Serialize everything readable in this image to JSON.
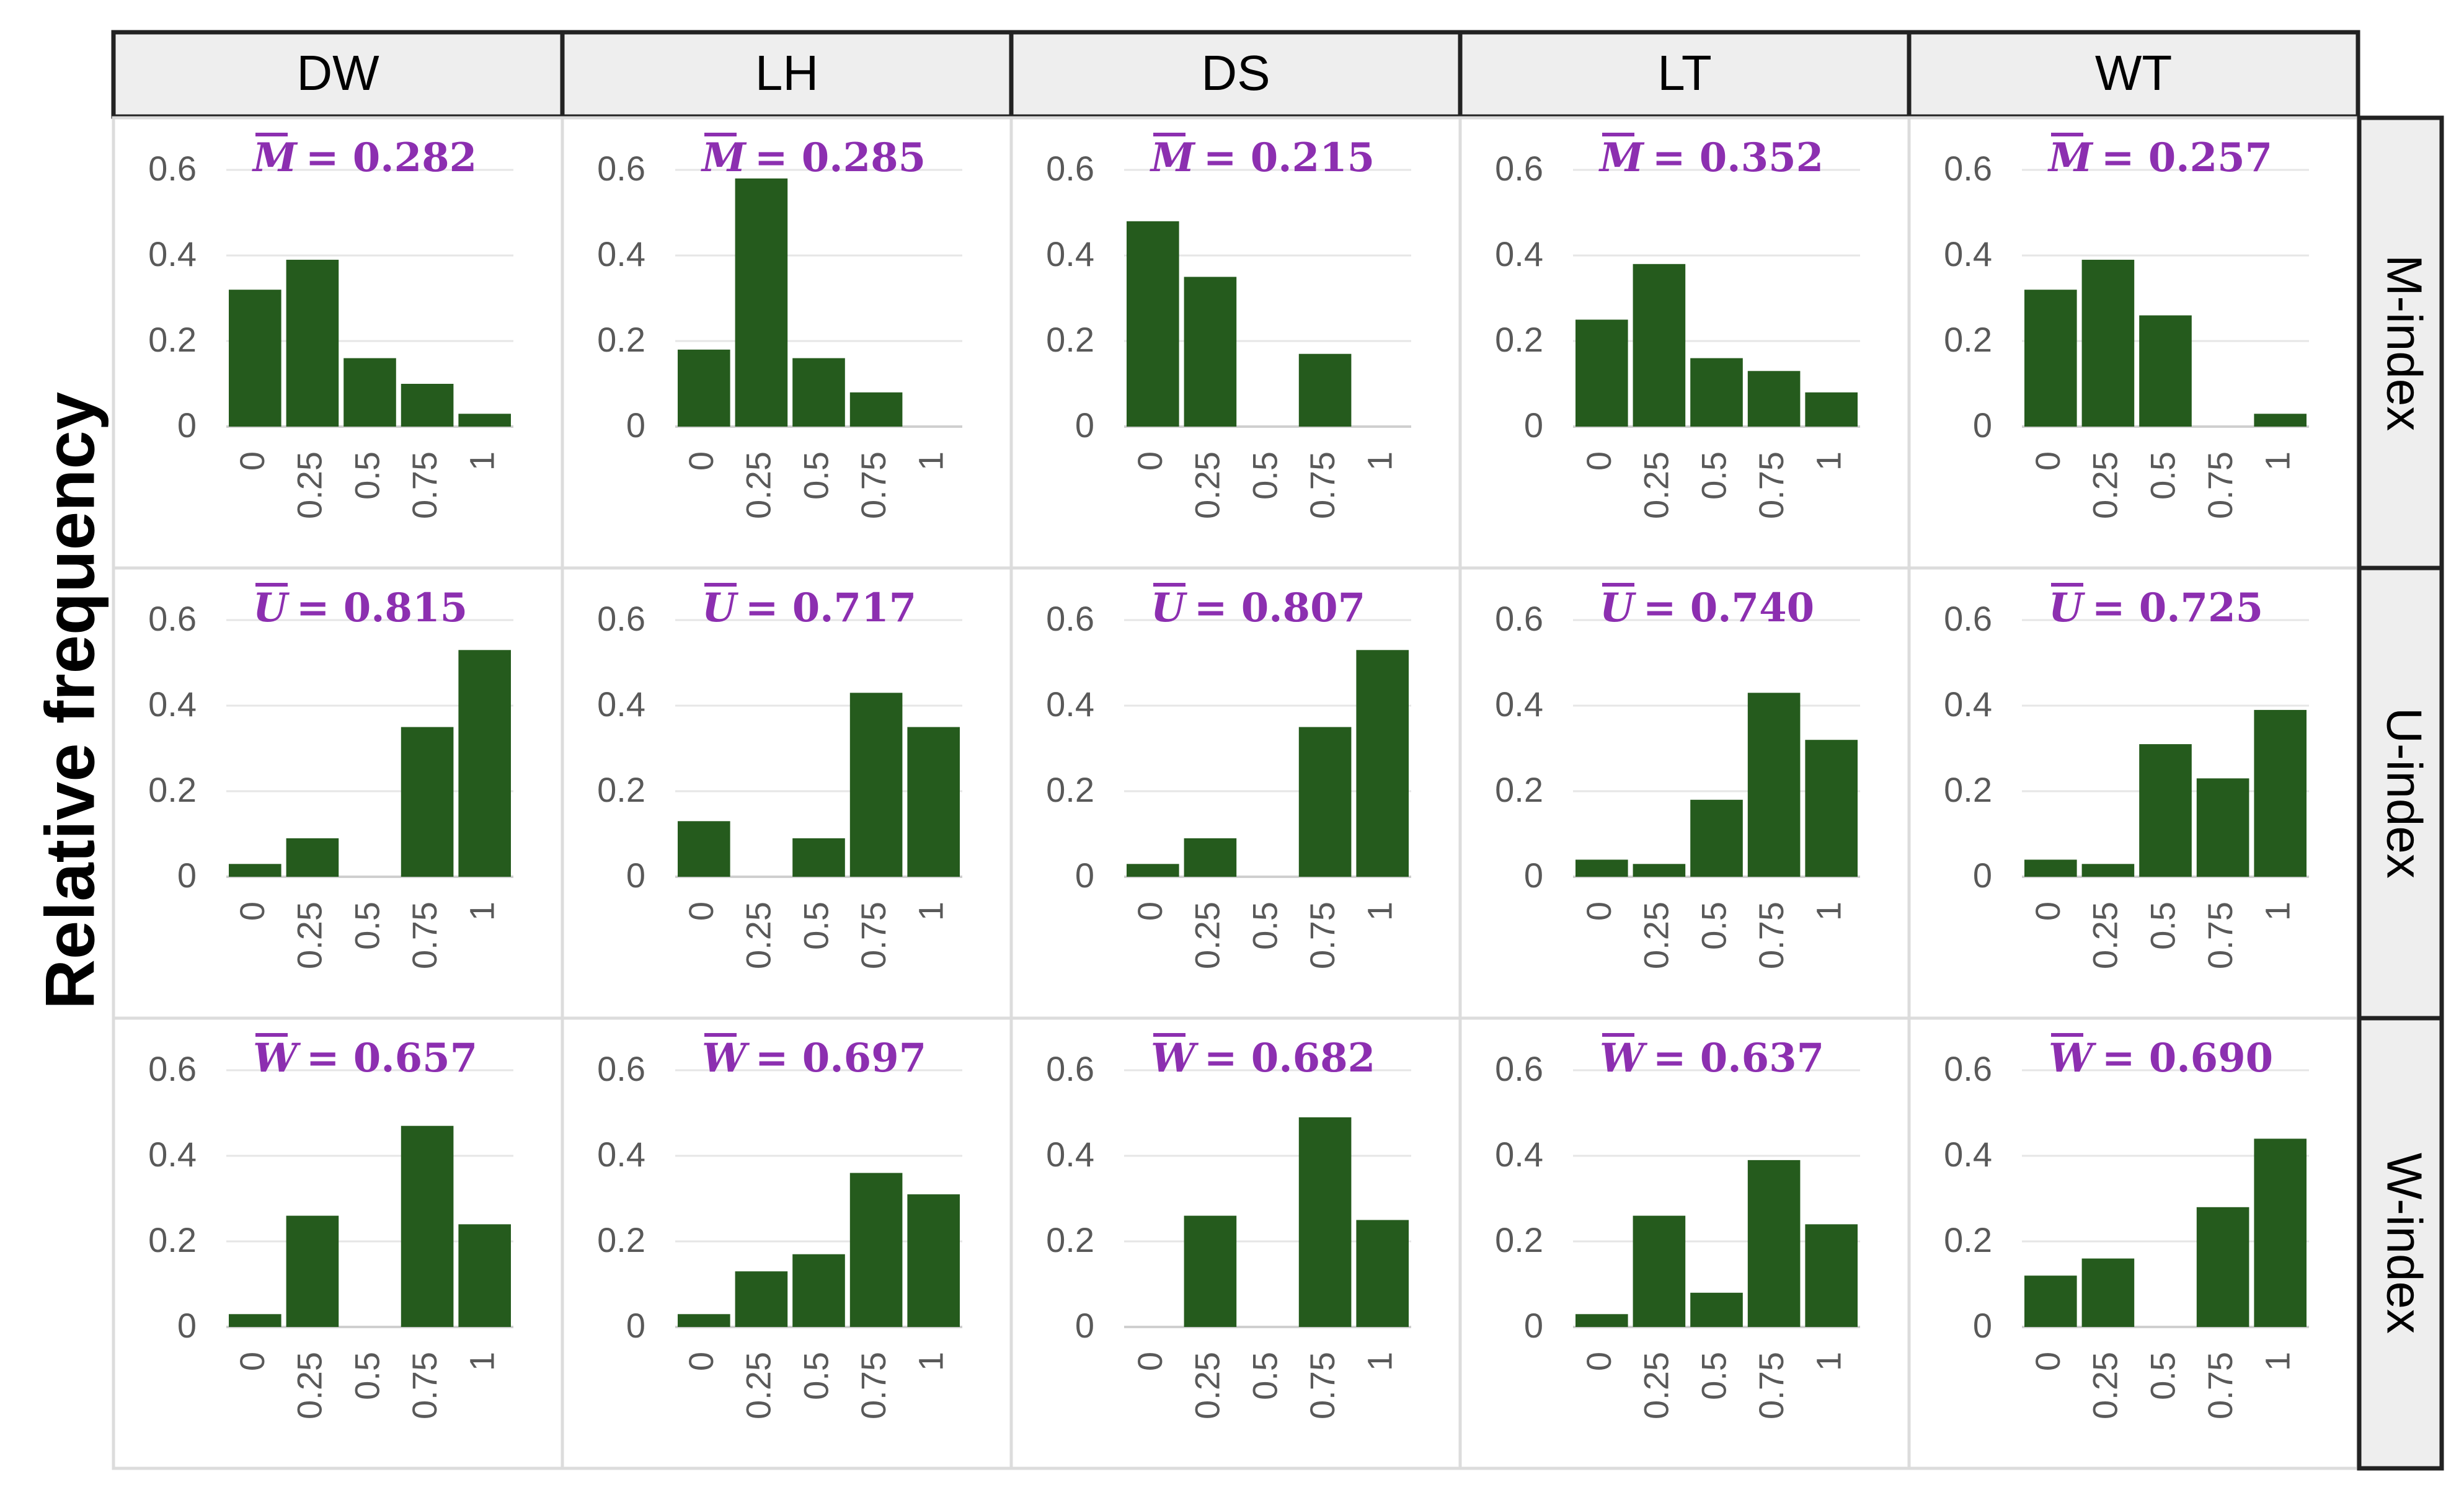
{
  "ylabel": "Relative frequency",
  "columns": [
    "DW",
    "LH",
    "DS",
    "LT",
    "WT"
  ],
  "rows": [
    {
      "label": "M-index",
      "symbol": "M"
    },
    {
      "label": "U-index",
      "symbol": "U"
    },
    {
      "label": "W-index",
      "symbol": "W"
    }
  ],
  "colors": {
    "bar": "#255b1d",
    "mean": "#8c2fb0",
    "header": "#eeeeee",
    "border": "#222222",
    "grid": "#dcdcdc",
    "tick": "#595959"
  },
  "chart_data": {
    "type": "bar",
    "categories": [
      "0",
      "0.25",
      "0.5",
      "0.75",
      "1"
    ],
    "yticks": [
      "0",
      "0.2",
      "0.4",
      "0.6"
    ],
    "ylim": [
      0,
      0.6
    ],
    "panels": [
      {
        "row": "M-index",
        "column": "DW",
        "mean_label": "= 0.282",
        "values": [
          0.32,
          0.39,
          0.16,
          0.1,
          0.03
        ]
      },
      {
        "row": "M-index",
        "column": "LH",
        "mean_label": "= 0.285",
        "values": [
          0.18,
          0.58,
          0.16,
          0.08,
          0.0
        ]
      },
      {
        "row": "M-index",
        "column": "DS",
        "mean_label": "= 0.215",
        "values": [
          0.48,
          0.35,
          0.0,
          0.17,
          0.0
        ]
      },
      {
        "row": "M-index",
        "column": "LT",
        "mean_label": "= 0.352",
        "values": [
          0.25,
          0.38,
          0.16,
          0.13,
          0.08
        ]
      },
      {
        "row": "M-index",
        "column": "WT",
        "mean_label": "= 0.257",
        "values": [
          0.32,
          0.39,
          0.26,
          0.0,
          0.03
        ]
      },
      {
        "row": "U-index",
        "column": "DW",
        "mean_label": "= 0.815",
        "values": [
          0.03,
          0.09,
          0.0,
          0.35,
          0.53
        ]
      },
      {
        "row": "U-index",
        "column": "LH",
        "mean_label": "= 0.717",
        "values": [
          0.13,
          0.0,
          0.09,
          0.43,
          0.35
        ]
      },
      {
        "row": "U-index",
        "column": "DS",
        "mean_label": "= 0.807",
        "values": [
          0.03,
          0.09,
          0.0,
          0.35,
          0.53
        ]
      },
      {
        "row": "U-index",
        "column": "LT",
        "mean_label": "= 0.740",
        "values": [
          0.04,
          0.03,
          0.18,
          0.43,
          0.32
        ]
      },
      {
        "row": "U-index",
        "column": "WT",
        "mean_label": "= 0.725",
        "values": [
          0.04,
          0.03,
          0.31,
          0.23,
          0.39
        ]
      },
      {
        "row": "W-index",
        "column": "DW",
        "mean_label": "= 0.657",
        "values": [
          0.03,
          0.26,
          0.0,
          0.47,
          0.24
        ]
      },
      {
        "row": "W-index",
        "column": "LH",
        "mean_label": "= 0.697",
        "values": [
          0.03,
          0.13,
          0.17,
          0.36,
          0.31
        ]
      },
      {
        "row": "W-index",
        "column": "DS",
        "mean_label": "= 0.682",
        "values": [
          0.0,
          0.26,
          0.0,
          0.49,
          0.25
        ]
      },
      {
        "row": "W-index",
        "column": "LT",
        "mean_label": "= 0.637",
        "values": [
          0.03,
          0.26,
          0.08,
          0.39,
          0.24
        ]
      },
      {
        "row": "W-index",
        "column": "WT",
        "mean_label": "= 0.690",
        "values": [
          0.12,
          0.16,
          0.0,
          0.28,
          0.44
        ]
      }
    ]
  }
}
